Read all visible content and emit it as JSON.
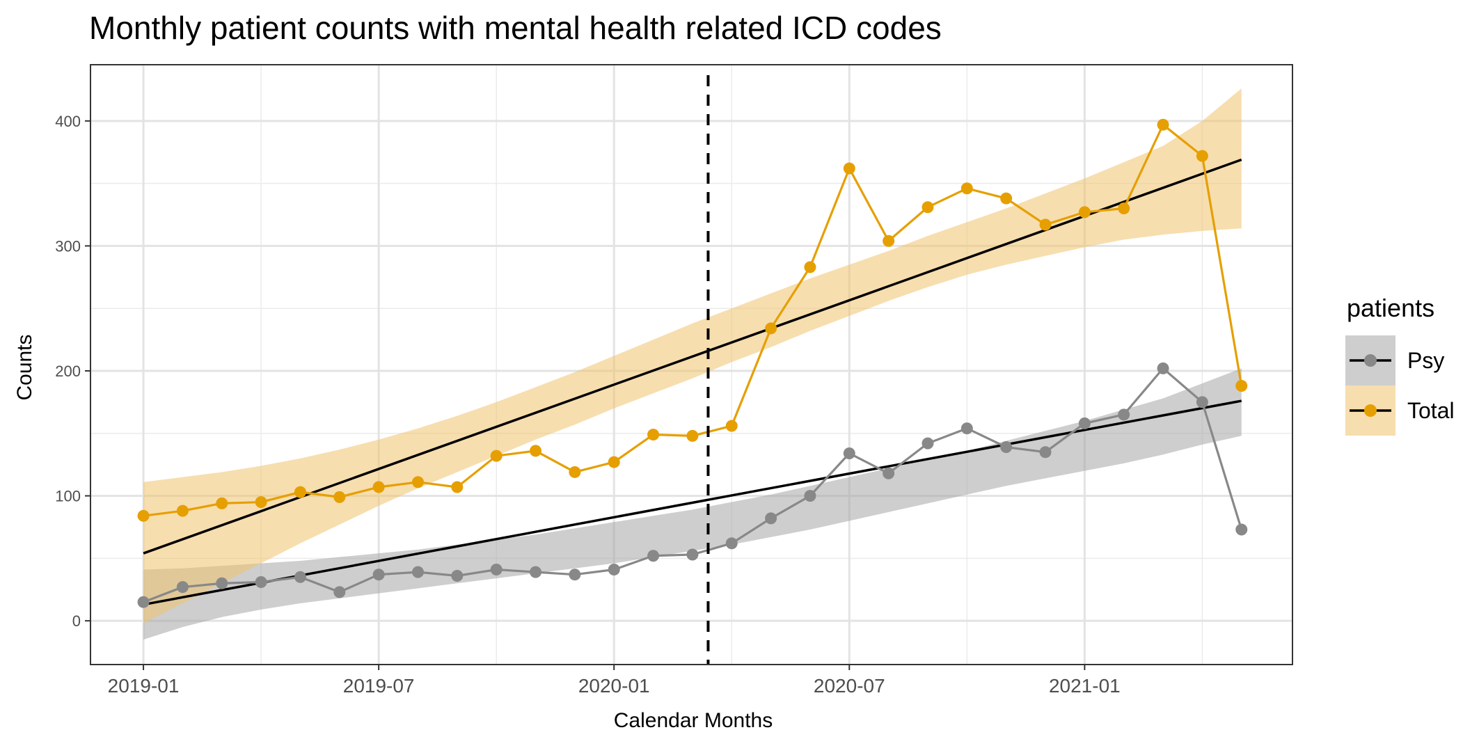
{
  "chart_data": {
    "type": "line",
    "title": "Monthly patient counts with mental health related ICD codes",
    "xlabel": "Calendar Months",
    "ylabel": "Counts",
    "x_ticks": [
      "2019-01",
      "2019-07",
      "2020-01",
      "2020-07",
      "2021-01"
    ],
    "x_tick_months": [
      0,
      6,
      12,
      18,
      24
    ],
    "y_ticks": [
      0,
      100,
      200,
      300,
      400
    ],
    "xlim_months": [
      -1.35,
      29.3
    ],
    "ylim": [
      -35,
      445
    ],
    "reference_line_month": 14.4,
    "x": [
      "2019-01",
      "2019-02",
      "2019-03",
      "2019-04",
      "2019-05",
      "2019-06",
      "2019-07",
      "2019-08",
      "2019-09",
      "2019-10",
      "2019-11",
      "2019-12",
      "2020-01",
      "2020-02",
      "2020-03",
      "2020-04",
      "2020-05",
      "2020-06",
      "2020-07",
      "2020-08",
      "2020-09",
      "2020-10",
      "2020-11",
      "2020-12",
      "2021-01",
      "2021-02",
      "2021-03",
      "2021-04",
      "2021-05"
    ],
    "series": [
      {
        "name": "Psy",
        "color": "#888888",
        "band_color": "#a6a6a6",
        "values": [
          15,
          27,
          30,
          31,
          35,
          23,
          37,
          39,
          36,
          41,
          39,
          37,
          41,
          52,
          53,
          62,
          82,
          100,
          134,
          118,
          142,
          154,
          139,
          135,
          158,
          165,
          202,
          175,
          73
        ],
        "trend": {
          "start": 13,
          "end": 176
        },
        "band_upper": [
          41,
          42,
          44,
          46,
          48,
          51,
          54,
          57,
          61,
          65,
          69,
          74,
          79,
          84,
          89,
          95,
          101,
          108,
          115,
          122,
          129,
          136,
          144,
          152,
          160,
          169,
          178,
          190,
          202
        ],
        "band_lower": [
          -15,
          -5,
          3,
          9,
          14,
          18,
          22,
          26,
          30,
          34,
          38,
          42,
          46,
          51,
          56,
          61,
          67,
          73,
          80,
          87,
          94,
          101,
          108,
          114,
          120,
          126,
          133,
          141,
          148
        ]
      },
      {
        "name": "Total",
        "color": "#e69f00",
        "band_color": "#f0c26e",
        "values": [
          84,
          88,
          94,
          95,
          103,
          99,
          107,
          111,
          107,
          132,
          136,
          119,
          127,
          149,
          148,
          156,
          234,
          283,
          362,
          304,
          331,
          346,
          338,
          317,
          327,
          330,
          397,
          372,
          188
        ],
        "trend": {
          "start": 54,
          "end": 369
        },
        "band_upper": [
          111,
          115,
          119,
          124,
          130,
          137,
          145,
          154,
          164,
          175,
          187,
          199,
          212,
          225,
          238,
          250,
          262,
          274,
          285,
          296,
          308,
          319,
          330,
          342,
          354,
          367,
          380,
          400,
          426
        ],
        "band_lower": [
          -2,
          14,
          30,
          46,
          62,
          77,
          92,
          106,
          119,
          132,
          145,
          157,
          170,
          182,
          194,
          207,
          219,
          232,
          244,
          256,
          267,
          277,
          285,
          292,
          299,
          305,
          309,
          312,
          314
        ]
      }
    ],
    "legend": {
      "title": "patients",
      "position": "right",
      "entries": [
        "Psy",
        "Total"
      ]
    },
    "grid": true
  }
}
